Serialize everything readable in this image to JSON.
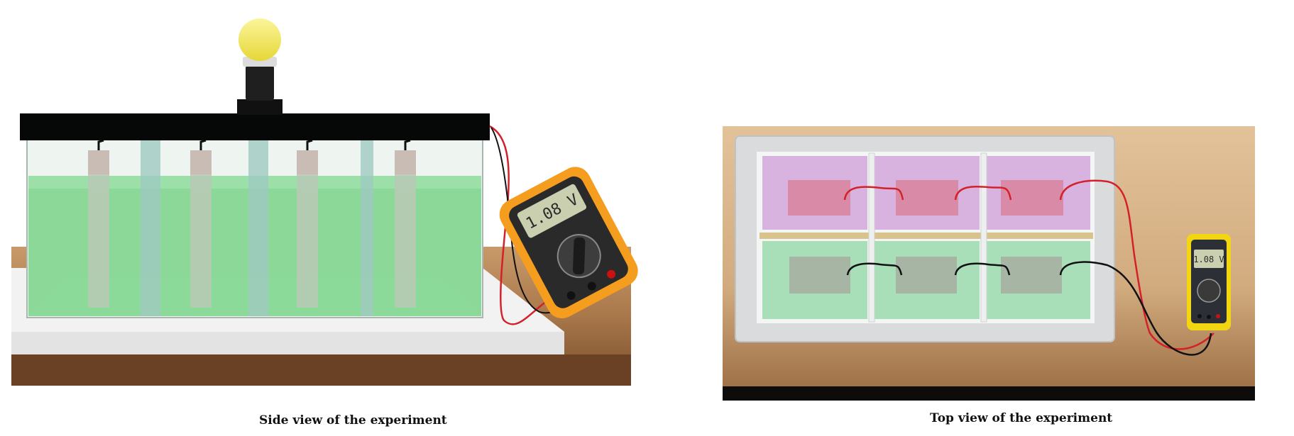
{
  "side_view": {
    "caption": "Side view of the experiment",
    "meter_reading": "1.08 V",
    "liquid_color": "#7fd58f",
    "bulb_color": "#f5e85a"
  },
  "top_view": {
    "caption": "Top view of the experiment",
    "meter_reading": "1.08 V",
    "upper_compartment_color": "#d9b3e0",
    "upper_plate_color": "#d98aa6",
    "lower_compartment_color": "#a9dfb8",
    "lower_plate_color": "#a7b6a4"
  },
  "wire_colors": {
    "positive": "#d4202a",
    "negative": "#111111"
  }
}
